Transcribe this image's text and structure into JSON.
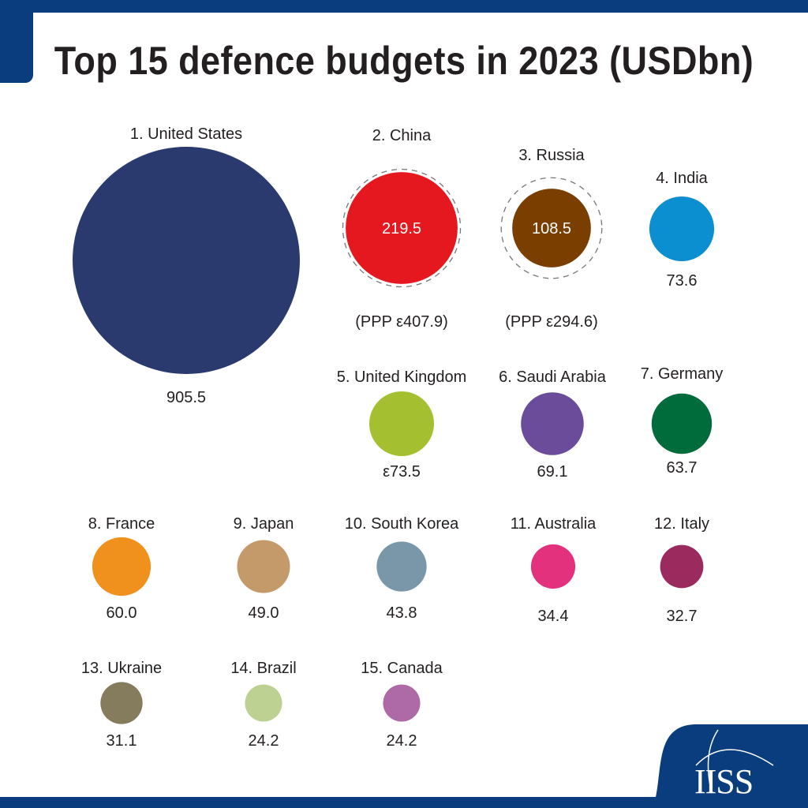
{
  "title": "Top 15 defence budgets in 2023 (USDbn)",
  "logo_text": "IISS",
  "brand_color": "#0a3d7e",
  "chart_data": {
    "type": "bubble",
    "title": "Top 15 defence budgets in 2023 (USDbn)",
    "unit": "USDbn",
    "series": [
      {
        "rank": 1,
        "label": "1. United States",
        "value": 905.5,
        "value_label": "905.5",
        "color": "#2b3a6e"
      },
      {
        "rank": 2,
        "label": "2. China",
        "value": 219.5,
        "value_label": "219.5",
        "ppp_value": 407.9,
        "ppp_label": "(PPP ε407.9)",
        "color": "#e5171f"
      },
      {
        "rank": 3,
        "label": "3. Russia",
        "value": 108.5,
        "value_label": "108.5",
        "ppp_value": 294.6,
        "ppp_label": "(PPP ε294.6)",
        "color": "#7a3e00"
      },
      {
        "rank": 4,
        "label": "4. India",
        "value": 73.6,
        "value_label": "73.6",
        "color": "#0b8fd0"
      },
      {
        "rank": 5,
        "label": "5. United Kingdom",
        "value": 73.5,
        "value_label": "ε73.5",
        "color": "#a4c031"
      },
      {
        "rank": 6,
        "label": "6. Saudi Arabia",
        "value": 69.1,
        "value_label": "69.1",
        "color": "#6a4c9b"
      },
      {
        "rank": 7,
        "label": "7. Germany",
        "value": 63.7,
        "value_label": "63.7",
        "color": "#006b3b"
      },
      {
        "rank": 8,
        "label": "8. France",
        "value": 60.0,
        "value_label": "60.0",
        "color": "#f0901d"
      },
      {
        "rank": 9,
        "label": "9. Japan",
        "value": 49.0,
        "value_label": "49.0",
        "color": "#c49a6b"
      },
      {
        "rank": 10,
        "label": "10. South Korea",
        "value": 43.8,
        "value_label": "43.8",
        "color": "#7a97a9"
      },
      {
        "rank": 11,
        "label": "11. Australia",
        "value": 34.4,
        "value_label": "34.4",
        "color": "#e4317e"
      },
      {
        "rank": 12,
        "label": "12. Italy",
        "value": 32.7,
        "value_label": "32.7",
        "color": "#9b2a5f"
      },
      {
        "rank": 13,
        "label": "13. Ukraine",
        "value": 31.1,
        "value_label": "31.1",
        "color": "#857b5d"
      },
      {
        "rank": 14,
        "label": "14. Brazil",
        "value": 24.2,
        "value_label": "24.2",
        "color": "#bcd192"
      },
      {
        "rank": 15,
        "label": "15. Canada",
        "value": 24.2,
        "value_label": "24.2",
        "color": "#ad6aa7"
      }
    ]
  }
}
